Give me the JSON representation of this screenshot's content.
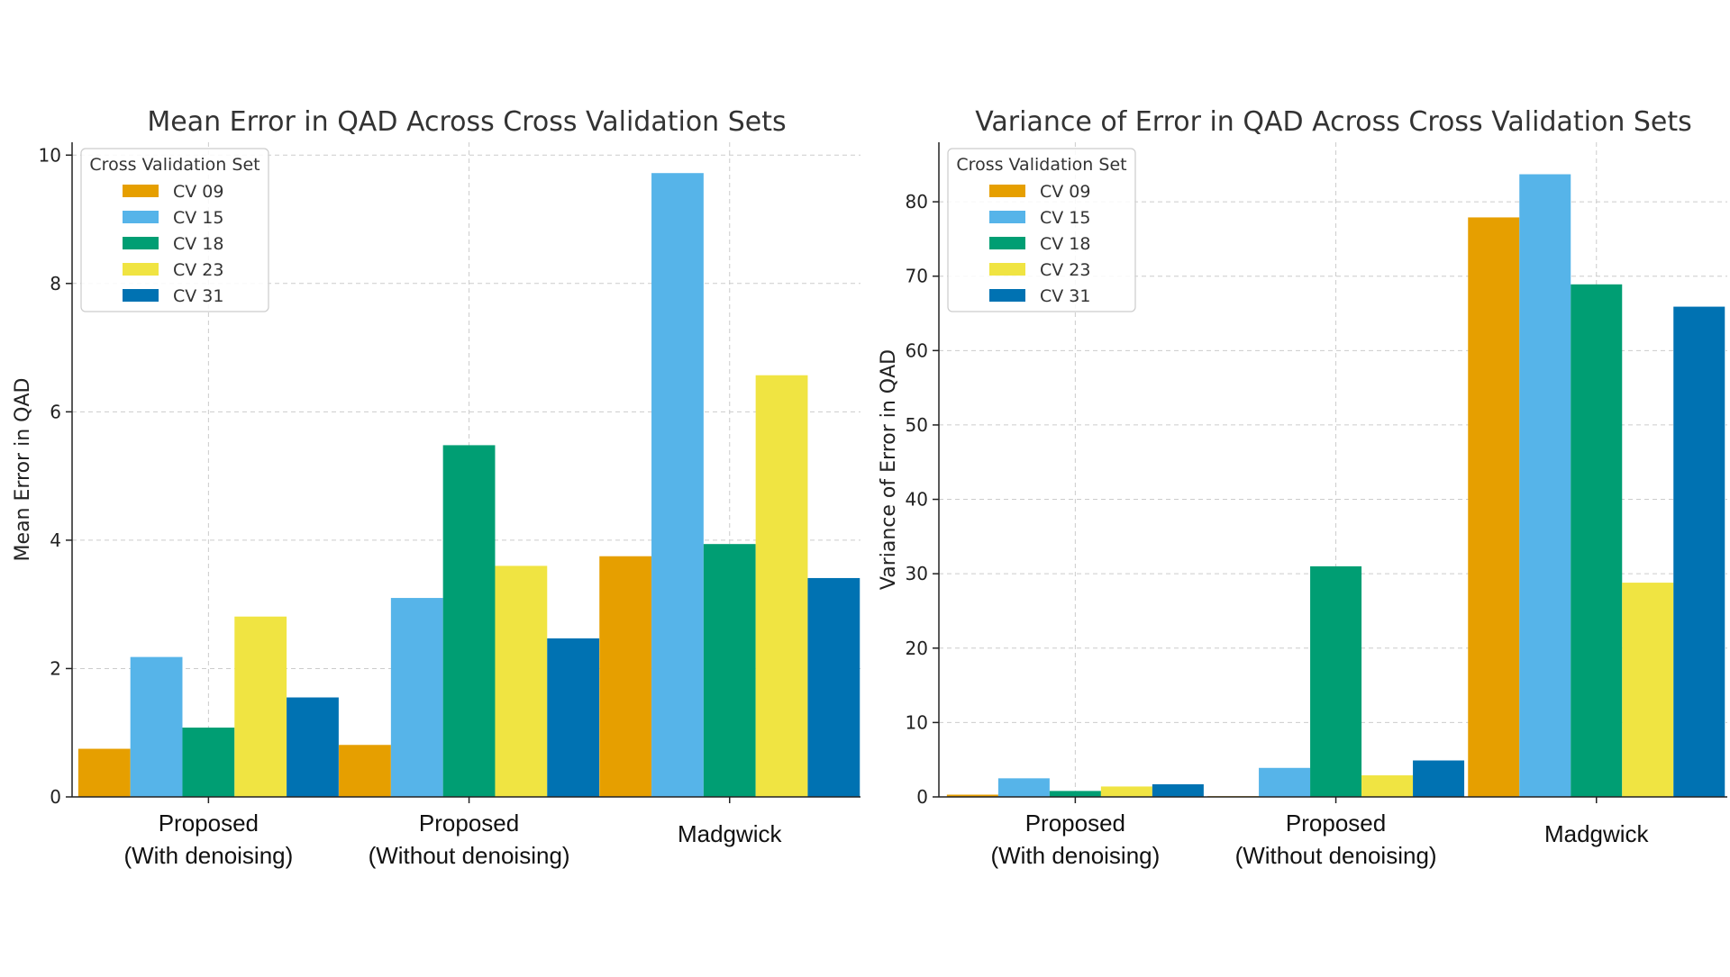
{
  "colors": {
    "CV 09": "#E69F00",
    "CV 15": "#56B4E9",
    "CV 18": "#009E73",
    "CV 23": "#F0E442",
    "CV 31": "#0072B2"
  },
  "chart_data": [
    {
      "type": "bar",
      "title": "Mean Error in QAD Across Cross Validation Sets",
      "ylabel": "Mean Error in QAD",
      "xlabel": "",
      "categories": [
        [
          "Proposed",
          "(With denoising)"
        ],
        [
          "Proposed",
          "(Without denoising)"
        ],
        [
          "Madgwick"
        ]
      ],
      "ylim": [
        0,
        10.2
      ],
      "yticks": [
        0,
        2,
        4,
        6,
        8,
        10
      ],
      "grid": true,
      "legend": {
        "title": "Cross Validation Set",
        "placement": "top-left"
      },
      "series": [
        {
          "name": "CV 09",
          "values": [
            0.75,
            0.81,
            3.75
          ]
        },
        {
          "name": "CV 15",
          "values": [
            2.18,
            3.1,
            9.72
          ]
        },
        {
          "name": "CV 18",
          "values": [
            1.08,
            5.48,
            3.94
          ]
        },
        {
          "name": "CV 23",
          "values": [
            2.81,
            3.6,
            6.57
          ]
        },
        {
          "name": "CV 31",
          "values": [
            1.55,
            2.47,
            3.41
          ]
        }
      ]
    },
    {
      "type": "bar",
      "title": "Variance of Error in QAD Across Cross Validation Sets",
      "ylabel": "Variance of Error in QAD",
      "xlabel": "",
      "categories": [
        [
          "Proposed",
          "(With denoising)"
        ],
        [
          "Proposed",
          "(Without denoising)"
        ],
        [
          "Madgwick"
        ]
      ],
      "ylim": [
        0,
        88
      ],
      "yticks": [
        0,
        10,
        20,
        30,
        40,
        50,
        60,
        70,
        80
      ],
      "grid": true,
      "legend": {
        "title": "Cross Validation Set",
        "placement": "top-left"
      },
      "series": [
        {
          "name": "CV 09",
          "values": [
            0.3,
            0.1,
            77.9
          ]
        },
        {
          "name": "CV 15",
          "values": [
            2.5,
            3.9,
            83.7
          ]
        },
        {
          "name": "CV 18",
          "values": [
            0.8,
            31.0,
            68.9
          ]
        },
        {
          "name": "CV 23",
          "values": [
            1.4,
            2.9,
            28.8
          ]
        },
        {
          "name": "CV 31",
          "values": [
            1.7,
            4.9,
            65.9
          ]
        }
      ]
    }
  ]
}
